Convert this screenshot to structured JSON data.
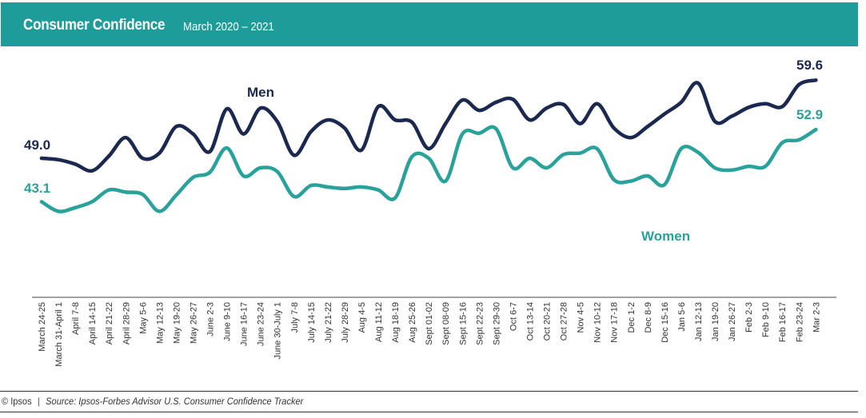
{
  "header": {
    "title": "Consumer Confidence",
    "subtitle": "March 2020 – 2021"
  },
  "footer": {
    "copyright": "© Ipsos",
    "separator": "|",
    "source": "Source: Ipsos-Forbes Advisor U.S. Consumer Confidence Tracker"
  },
  "colors": {
    "header": "#1e9c9a",
    "men": "#1b2850",
    "women": "#28a29b"
  },
  "chart_data": {
    "type": "line",
    "title": "Consumer Confidence",
    "subtitle": "March 2020 – 2021",
    "grid": false,
    "y_axis_shown": false,
    "categories": [
      "March 24-25",
      "March 31-April 1",
      "April 7-8",
      "April 14-15",
      "April 21-22",
      "April 28-29",
      "May 5-6",
      "May 12-13",
      "May 19-20",
      "May 26-27",
      "June 2-3",
      "June 9-10",
      "June 16-17",
      "June 23-24",
      "June 30-July 1",
      "July 7-8",
      "July 14-15",
      "July 21-22",
      "July 28-29",
      "Aug 4-5",
      "Aug 11-12",
      "Aug 18-19",
      "Aug 25-26",
      "Sept 01-02",
      "Sept 08-09",
      "Sept 15-16",
      "Sept 22-23",
      "Sept 29-30",
      "Oct 6-7",
      "Oct 13-14",
      "Oct 20-21",
      "Oct 27-28",
      "Nov 4-5",
      "Nov 10-12",
      "Nov 17-18",
      "Dec 1-2",
      "Dec 8-9",
      "Dec 15-16",
      "Jan 5-6",
      "Jan 12-13",
      "Jan 19-20",
      "Jan 26-27",
      "Feb 2-3",
      "Feb 9-10",
      "Feb 16-17",
      "Feb 23-24",
      "Mar 2-3"
    ],
    "series": [
      {
        "name": "Men",
        "color": "#1b2850",
        "start_label": "49.0",
        "end_label": "59.6",
        "values": [
          49.0,
          48.8,
          48.2,
          47.3,
          49.3,
          51.8,
          49.0,
          49.7,
          53.3,
          52.3,
          49.9,
          55.7,
          52.3,
          55.8,
          54.0,
          49.4,
          52.6,
          54.2,
          53.1,
          50.1,
          56.0,
          54.2,
          53.9,
          50.3,
          53.7,
          56.9,
          55.5,
          56.6,
          57.0,
          54.2,
          55.8,
          56.3,
          53.7,
          56.4,
          53.1,
          51.8,
          53.3,
          55.0,
          56.6,
          59.2,
          54.0,
          54.7,
          55.9,
          56.4,
          56.0,
          59.0,
          59.6
        ]
      },
      {
        "name": "Women",
        "color": "#28a29b",
        "start_label": "43.1",
        "end_label": "52.9",
        "values": [
          43.1,
          41.8,
          42.3,
          43.1,
          44.7,
          44.4,
          44.1,
          41.8,
          44.0,
          46.4,
          47.1,
          50.4,
          46.6,
          47.7,
          47.2,
          43.8,
          45.3,
          45.1,
          44.9,
          45.1,
          44.7,
          43.6,
          49.2,
          49.0,
          45.9,
          52.3,
          52.4,
          53.0,
          47.7,
          49.0,
          47.7,
          49.5,
          49.7,
          50.3,
          46.1,
          45.9,
          46.6,
          45.4,
          50.3,
          49.8,
          47.7,
          47.4,
          47.9,
          47.9,
          51.1,
          51.5,
          52.9
        ]
      }
    ]
  }
}
